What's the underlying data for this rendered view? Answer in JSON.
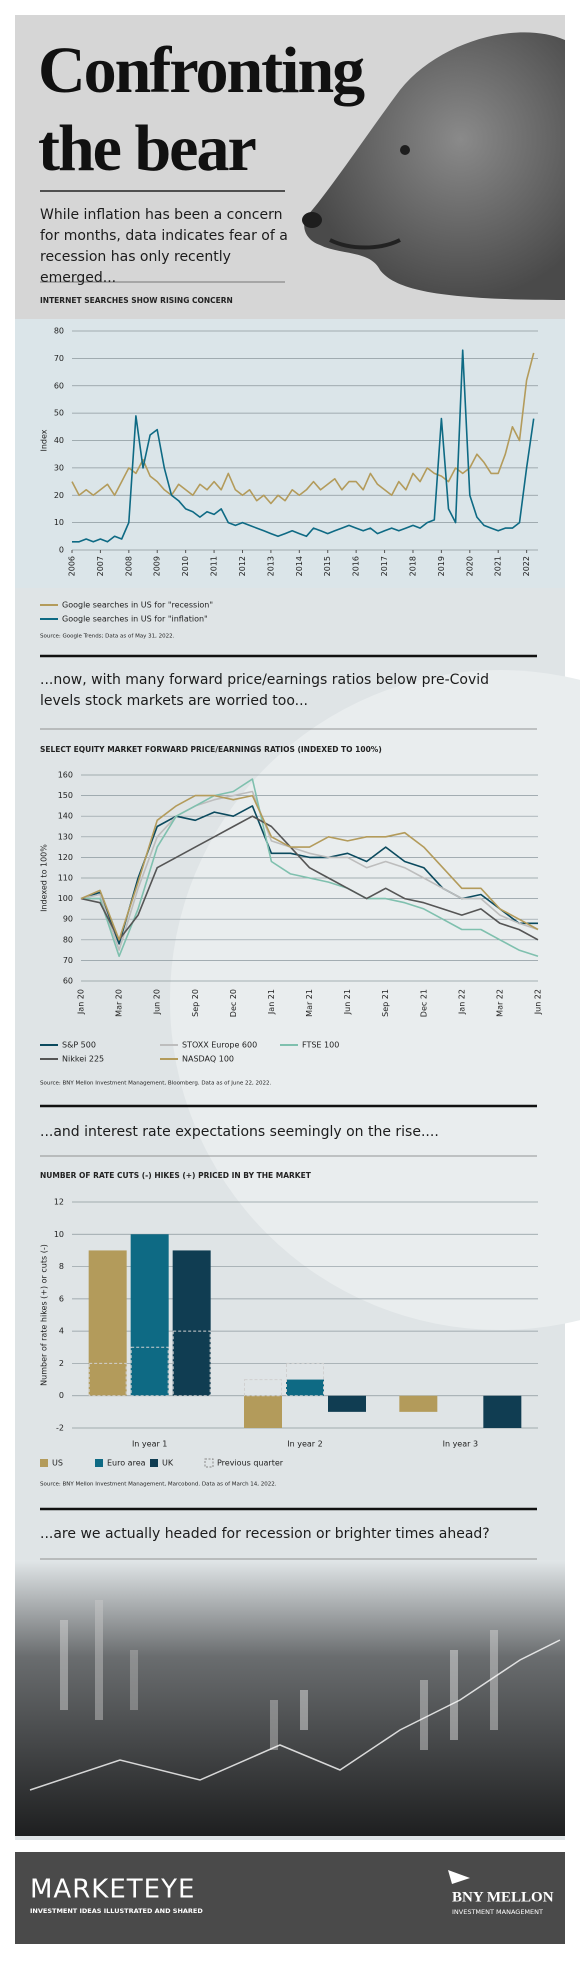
{
  "header": {
    "title_lines": [
      "Confronting",
      "the bear"
    ],
    "subtitle": "While inflation has been a concern for months, data indicates fear of a recession has only recently emerged..."
  },
  "narrative": [
    "...now, with many forward price/earnings ratios below pre-Covid levels stock markets are worried too...",
    "...and interest rate expectations seemingly on the rise....",
    "...are we actually headed for recession or brighter times ahead?"
  ],
  "chart_data": [
    {
      "type": "line",
      "title": "INTERNET SEARCHES SHOW RISING CONCERN",
      "y_label": "Index",
      "source": "Source: Google Trends; Data as of May 31, 2022.",
      "x": [
        2006,
        2006.25,
        2006.5,
        2006.75,
        2007,
        2007.25,
        2007.5,
        2007.75,
        2008,
        2008.25,
        2008.5,
        2008.75,
        2009,
        2009.25,
        2009.5,
        2009.75,
        2010,
        2010.25,
        2010.5,
        2010.75,
        2011,
        2011.25,
        2011.5,
        2011.75,
        2012,
        2012.25,
        2012.5,
        2012.75,
        2013,
        2013.25,
        2013.5,
        2013.75,
        2014,
        2014.25,
        2014.5,
        2014.75,
        2015,
        2015.25,
        2015.5,
        2015.75,
        2016,
        2016.25,
        2016.5,
        2016.75,
        2017,
        2017.25,
        2017.5,
        2017.75,
        2018,
        2018.25,
        2018.5,
        2018.75,
        2019,
        2019.25,
        2019.5,
        2019.75,
        2020,
        2020.25,
        2020.5,
        2020.75,
        2021,
        2021.25,
        2021.5,
        2021.75,
        2022,
        2022.25
      ],
      "series": [
        {
          "name": "Google searches in US for \"recession\"",
          "color": "#b39b5b",
          "values": [
            25,
            20,
            22,
            20,
            22,
            24,
            20,
            25,
            30,
            28,
            33,
            27,
            25,
            22,
            20,
            24,
            22,
            20,
            24,
            22,
            25,
            22,
            28,
            22,
            20,
            22,
            18,
            20,
            17,
            20,
            18,
            22,
            20,
            22,
            25,
            22,
            24,
            26,
            22,
            25,
            25,
            22,
            28,
            24,
            22,
            20,
            25,
            22,
            28,
            25,
            30,
            28,
            27,
            25,
            30,
            28,
            30,
            35,
            32,
            28,
            28,
            35,
            45,
            40,
            62,
            72
          ]
        },
        {
          "name": "Google searches in US for \"inflation\"",
          "color": "#0e6a84",
          "values": [
            3,
            3,
            4,
            3,
            4,
            3,
            5,
            4,
            10,
            49,
            30,
            42,
            44,
            30,
            20,
            18,
            15,
            14,
            12,
            14,
            13,
            15,
            10,
            9,
            10,
            9,
            8,
            7,
            6,
            5,
            6,
            7,
            6,
            5,
            8,
            7,
            6,
            7,
            8,
            9,
            8,
            7,
            8,
            6,
            7,
            8,
            7,
            8,
            9,
            8,
            10,
            11,
            48,
            15,
            10,
            73,
            20,
            12,
            9,
            8,
            7,
            8,
            8,
            10,
            30,
            48
          ]
        }
      ],
      "xlim": [
        2006,
        2022.4
      ],
      "xticks": [
        2006,
        2007,
        2008,
        2009,
        2010,
        2011,
        2012,
        2013,
        2014,
        2015,
        2016,
        2017,
        2018,
        2019,
        2020,
        2021,
        2022
      ],
      "ylim": [
        0,
        80
      ],
      "yticks": [
        0,
        10,
        20,
        30,
        40,
        50,
        60,
        70,
        80
      ],
      "grid": true
    },
    {
      "type": "line",
      "title": "SELECT EQUITY MARKET FORWARD PRICE/EARNINGS RATIOS (INDEXED TO 100%)",
      "y_label": "Indexed to 100%",
      "source": "Source: BNY Mellon Investment Management, Bloomberg. Data as of June 22, 2022.",
      "categories": [
        "Jan 20",
        null,
        "Mar 20",
        null,
        "Jun 20",
        null,
        "Sep 20",
        null,
        "Dec 20",
        null,
        "Jan 21",
        null,
        "Mar 21",
        null,
        "Jun 21",
        null,
        "Sep 21",
        null,
        "Dec 21",
        null,
        "Jan 22",
        null,
        "Mar 22",
        null,
        "Jun 22"
      ],
      "series": [
        {
          "name": "S&P 500",
          "color": "#0b4a5e",
          "values": [
            100,
            103,
            78,
            110,
            135,
            140,
            138,
            142,
            140,
            145,
            122,
            122,
            120,
            120,
            122,
            118,
            125,
            118,
            115,
            105,
            100,
            102,
            95,
            88,
            88
          ]
        },
        {
          "name": "STOXX Europe 600",
          "color": "#bdbdbd",
          "values": [
            100,
            102,
            75,
            105,
            130,
            140,
            145,
            148,
            150,
            152,
            128,
            125,
            122,
            120,
            120,
            115,
            118,
            115,
            110,
            105,
            100,
            100,
            92,
            88,
            85
          ]
        },
        {
          "name": "FTSE 100",
          "color": "#7fc0ae",
          "values": [
            100,
            100,
            72,
            95,
            125,
            140,
            145,
            150,
            152,
            158,
            118,
            112,
            110,
            108,
            105,
            100,
            100,
            98,
            95,
            90,
            85,
            85,
            80,
            75,
            72
          ]
        },
        {
          "name": "Nikkei 225",
          "color": "#555555",
          "values": [
            100,
            98,
            80,
            92,
            115,
            120,
            125,
            130,
            135,
            140,
            135,
            125,
            115,
            110,
            105,
            100,
            105,
            100,
            98,
            95,
            92,
            95,
            88,
            85,
            80
          ]
        },
        {
          "name": "NASDAQ 100",
          "color": "#b39b5b",
          "values": [
            100,
            104,
            80,
            108,
            138,
            145,
            150,
            150,
            148,
            150,
            130,
            125,
            125,
            130,
            128,
            130,
            130,
            132,
            125,
            115,
            105,
            105,
            95,
            90,
            85
          ]
        }
      ],
      "ylim": [
        60,
        160
      ],
      "yticks": [
        60,
        70,
        80,
        90,
        100,
        110,
        120,
        130,
        140,
        150,
        160
      ],
      "grid": true
    },
    {
      "type": "bar",
      "title": "NUMBER OF RATE CUTS (-) HIKES (+) PRICED IN BY THE MARKET",
      "y_label": "Number of rate hikes (+) or cuts (-)",
      "source": "Source: BNY Mellon Investment Management, Marcobond. Data as of March 14, 2022.",
      "categories": [
        "In year 1",
        "In year 2",
        "In year 3"
      ],
      "series": [
        {
          "name": "US",
          "color": "#b39b5b",
          "values": [
            9,
            -2,
            -1
          ],
          "previous_values": [
            2,
            1,
            null
          ]
        },
        {
          "name": "Euro area",
          "color": "#0e6a84",
          "values": [
            10,
            1,
            null
          ],
          "previous_values": [
            3,
            2,
            null
          ]
        },
        {
          "name": "UK",
          "color": "#103d52",
          "values": [
            9,
            -1,
            -2
          ],
          "previous_values": [
            4,
            null,
            null
          ]
        }
      ],
      "previous_name": "Previous quarter",
      "ylim": [
        -2,
        12
      ],
      "yticks": [
        -2,
        0,
        2,
        4,
        6,
        8,
        10,
        12
      ],
      "grid": true
    }
  ],
  "footer": {
    "brand": "MARKETEYE",
    "tagline": "INVESTMENT IDEAS ILLUSTRATED AND SHARED",
    "company": "BNY MELLON",
    "division": "INVESTMENT MANAGEMENT"
  }
}
